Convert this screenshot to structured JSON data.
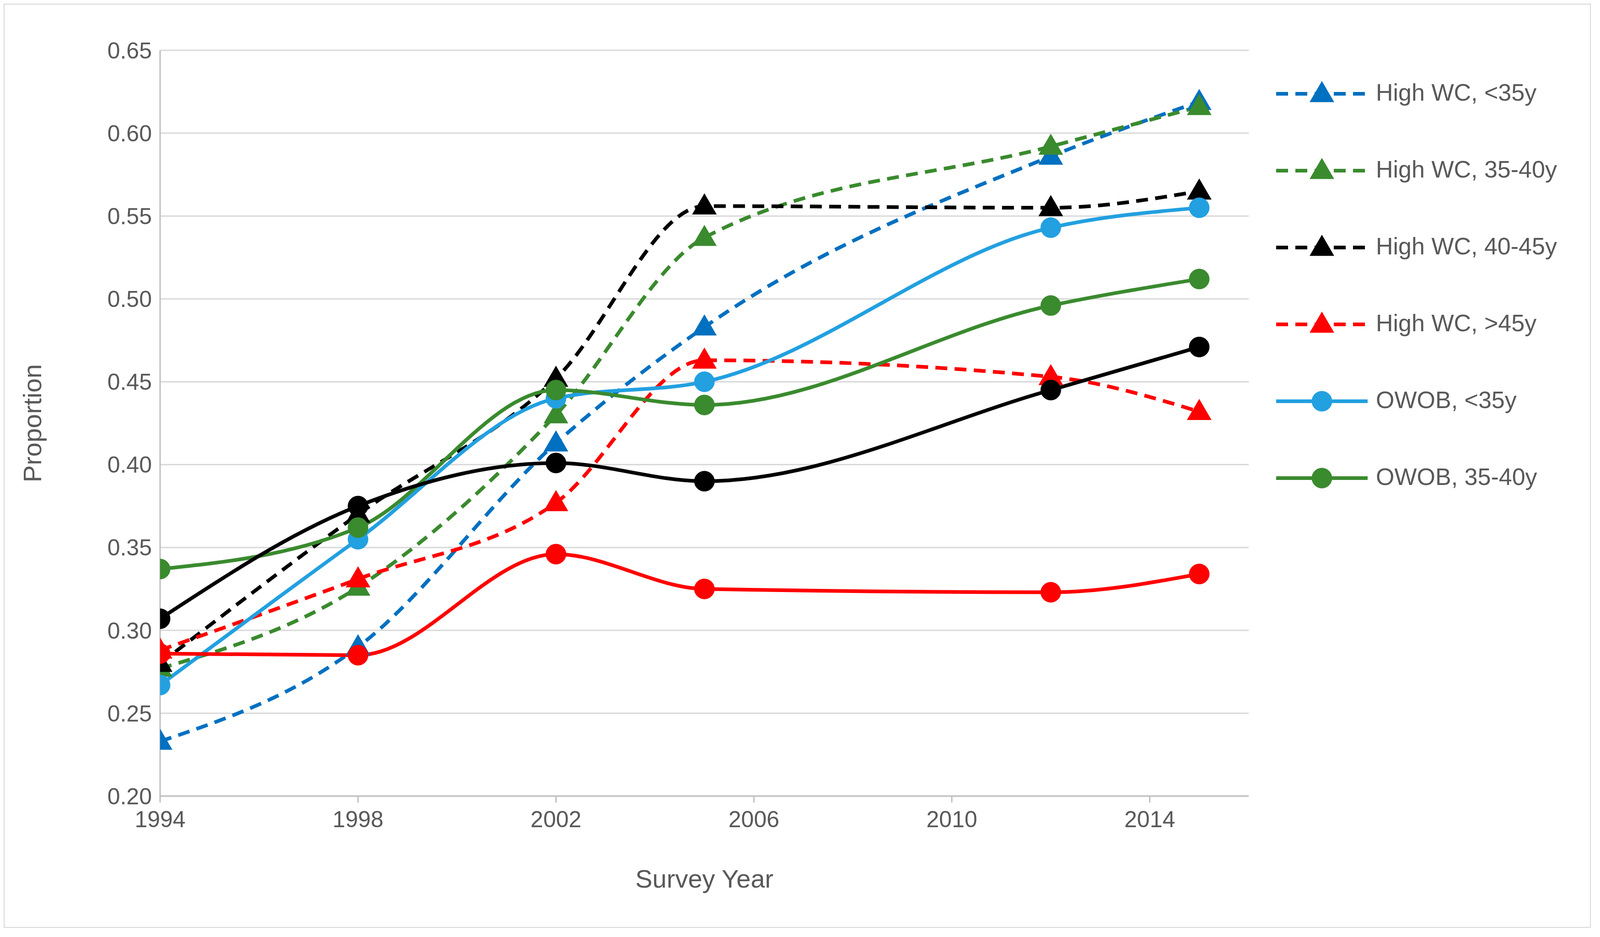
{
  "chart_data": {
    "type": "line",
    "x_label": "Survey Year",
    "y_label": "Proportion",
    "x": [
      1994,
      1998,
      2002,
      2005,
      2012,
      2015
    ],
    "xlim": [
      1994,
      2016
    ],
    "xticks": [
      1994,
      1998,
      2002,
      2006,
      2010,
      2014
    ],
    "ylim": [
      0.2,
      0.65
    ],
    "yticks": [
      {
        "value": 0.2,
        "label": "0.20"
      },
      0.25,
      {
        "value": 0.3,
        "label": "0.30"
      },
      0.35,
      {
        "value": 0.4,
        "label": "0.40"
      },
      0.45,
      {
        "value": 0.5,
        "label": "0.50"
      },
      0.55,
      {
        "value": 0.6,
        "label": "0.60"
      },
      0.65
    ],
    "grid": true,
    "legend": "right",
    "series": [
      {
        "name": "High WC, <35y",
        "color": "#0070c0",
        "marker": "triangle",
        "line_style": "dashed",
        "values": [
          0.233,
          0.29,
          0.413,
          0.483,
          0.586,
          0.619
        ]
      },
      {
        "name": "High WC, 35-40y",
        "color": "#3a8a2e",
        "marker": "triangle",
        "line_style": "dashed",
        "values": [
          0.277,
          0.326,
          0.43,
          0.537,
          0.592,
          0.616
        ]
      },
      {
        "name": "High WC, 40-45y",
        "color": "#000000",
        "marker": "triangle",
        "line_style": "dashed",
        "values": [
          0.28,
          0.37,
          0.452,
          0.556,
          0.555,
          0.565
        ]
      },
      {
        "name": "High WC, >45y",
        "color": "#ff0000",
        "marker": "triangle",
        "line_style": "dashed",
        "values": [
          0.288,
          0.331,
          0.377,
          0.463,
          0.453,
          0.432
        ]
      },
      {
        "name": "OWOB, <35y",
        "color": "#22a0e0",
        "marker": "circle",
        "line_style": "solid",
        "values": [
          0.267,
          0.355,
          0.44,
          0.45,
          0.543,
          0.555
        ]
      },
      {
        "name": "OWOB, 35-40y",
        "color": "#3a8a2e",
        "marker": "circle",
        "line_style": "solid",
        "values": [
          0.337,
          0.362,
          0.445,
          0.436,
          0.496,
          0.512
        ]
      },
      {
        "color": "#000000",
        "marker": "circle",
        "line_style": "solid",
        "values": [
          0.307,
          0.375,
          0.401,
          0.39,
          0.445,
          0.471
        ]
      },
      {
        "color": "#ff0000",
        "marker": "circle",
        "line_style": "solid",
        "values": [
          0.286,
          0.285,
          0.346,
          0.325,
          0.323,
          0.334
        ]
      }
    ]
  }
}
